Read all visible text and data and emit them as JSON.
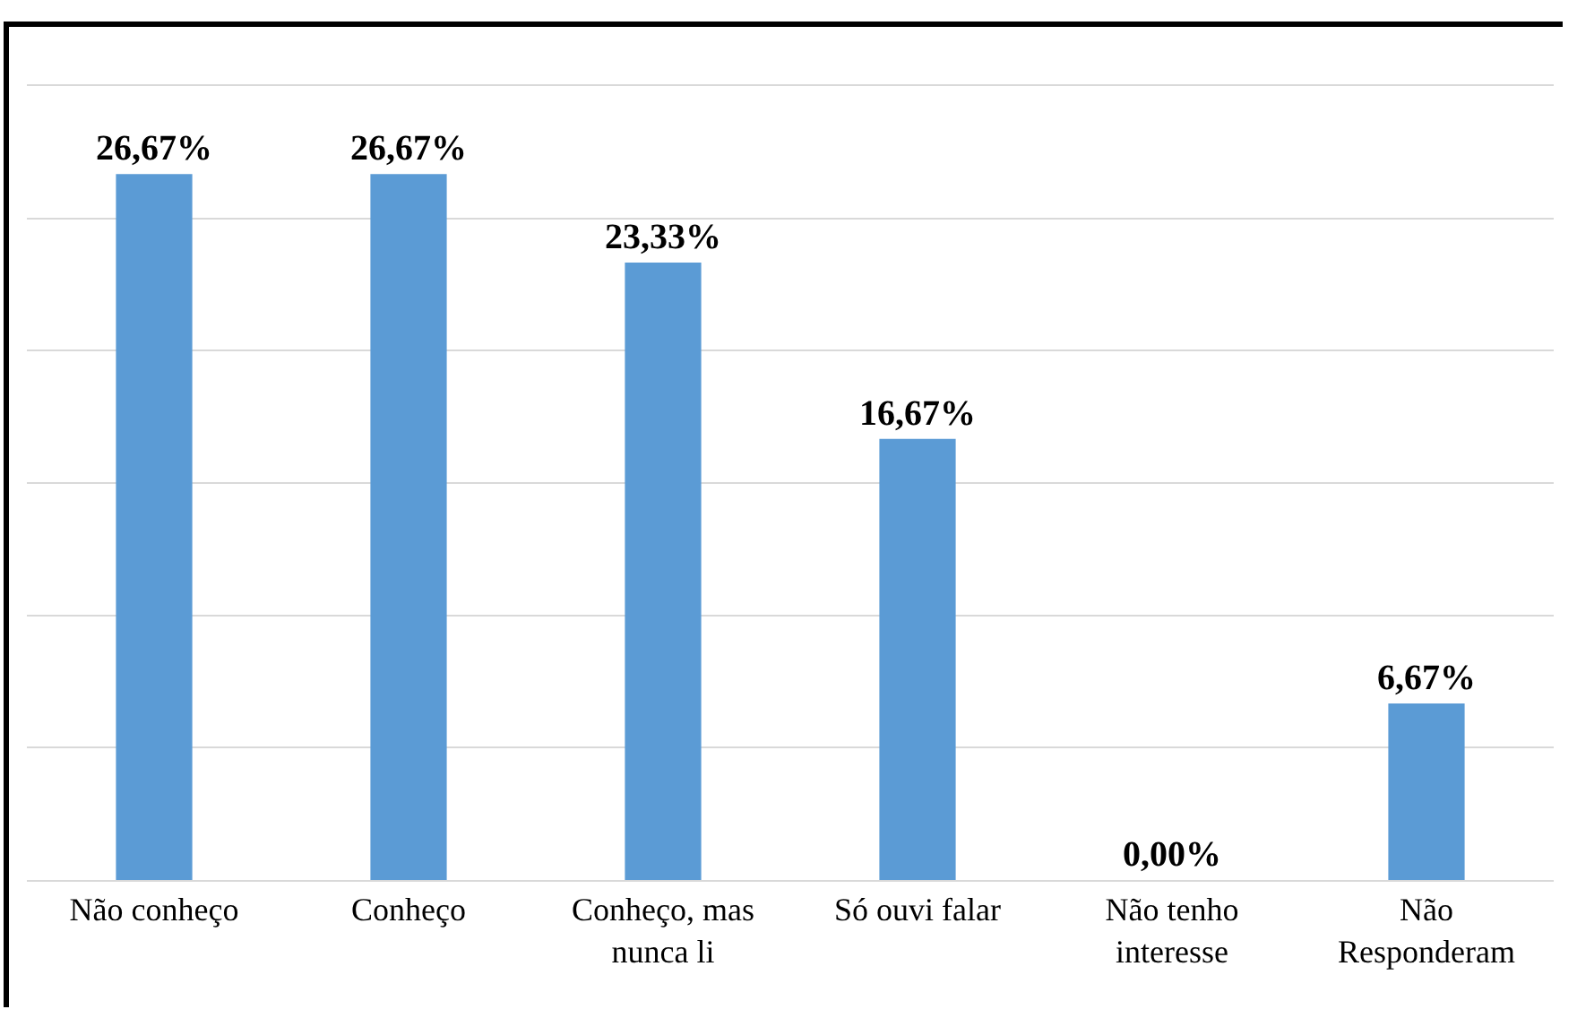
{
  "chart_data": {
    "type": "bar",
    "categories": [
      "Não conheço",
      "Conheço",
      "Conheço, mas nunca li",
      "Só ouvi falar",
      "Não tenho interesse",
      "Não Responderam"
    ],
    "values": [
      26.67,
      26.67,
      23.33,
      16.67,
      0,
      6.67
    ],
    "value_labels": [
      "26,67%",
      "26,67%",
      "23,33%",
      "16,67%",
      "0,00%",
      "6,67%"
    ],
    "color": "#5b9bd5",
    "ylim": [
      0,
      30
    ],
    "yticks": [
      {
        "value": 0,
        "label": null
      },
      {
        "value": 5,
        "label": null
      },
      {
        "value": 10,
        "label": null
      },
      {
        "value": 15,
        "label": null
      },
      {
        "value": 20,
        "label": null
      },
      {
        "value": 25,
        "label": null
      },
      {
        "value": 30,
        "label": null
      }
    ],
    "grid": "y",
    "tick_labels": "x",
    "legend": false
  }
}
